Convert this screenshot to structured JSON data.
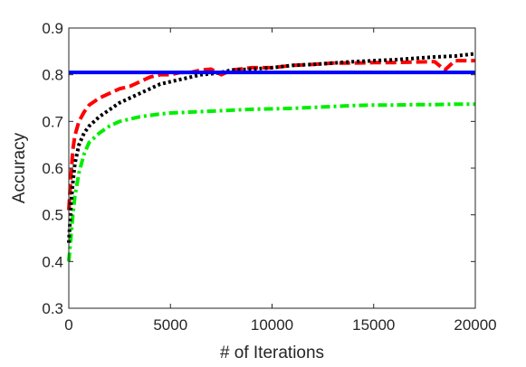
{
  "chart_data": {
    "type": "line",
    "xlabel": "# of Iterations",
    "ylabel": "Accuracy",
    "xlim": [
      0,
      20000
    ],
    "ylim": [
      0.3,
      0.9
    ],
    "xticks": [
      0,
      5000,
      10000,
      15000,
      20000
    ],
    "xtick_labels": [
      "0",
      "5000",
      "10000",
      "15000",
      "20000"
    ],
    "yticks": [
      0.3,
      0.4,
      0.5,
      0.6,
      0.7,
      0.8,
      0.9
    ],
    "ytick_labels": [
      "0.3",
      "0.4",
      "0.5",
      "0.6",
      "0.7",
      "0.8",
      "0.9"
    ],
    "grid": false,
    "box": true,
    "series": [
      {
        "color": "#0000ff",
        "style": "solid",
        "x": [
          0,
          20000
        ],
        "values": [
          0.805,
          0.805
        ]
      },
      {
        "color": "#ff0000",
        "style": "dashed",
        "x": [
          0,
          100,
          200,
          300,
          500,
          750,
          1000,
          1500,
          2000,
          2500,
          3000,
          3500,
          4000,
          4500,
          5000,
          5500,
          6000,
          6500,
          7000,
          7500,
          8000,
          9000,
          10000,
          11000,
          12000,
          13000,
          14000,
          15000,
          16000,
          17000,
          18000,
          18500,
          19000,
          19500,
          20000
        ],
        "values": [
          0.51,
          0.58,
          0.64,
          0.67,
          0.7,
          0.72,
          0.735,
          0.75,
          0.76,
          0.77,
          0.775,
          0.785,
          0.795,
          0.8,
          0.8,
          0.805,
          0.805,
          0.81,
          0.812,
          0.8,
          0.81,
          0.815,
          0.815,
          0.82,
          0.822,
          0.825,
          0.825,
          0.826,
          0.826,
          0.827,
          0.828,
          0.81,
          0.83,
          0.83,
          0.83
        ]
      },
      {
        "color": "#000000",
        "style": "dotted",
        "x": [
          0,
          100,
          200,
          300,
          500,
          750,
          1000,
          1500,
          2000,
          2500,
          3000,
          3500,
          4000,
          4500,
          5000,
          5500,
          6000,
          6500,
          7000,
          7500,
          8000,
          9000,
          10000,
          11000,
          12000,
          13000,
          14000,
          15000,
          16000,
          17000,
          18000,
          19000,
          20000
        ],
        "values": [
          0.44,
          0.52,
          0.57,
          0.61,
          0.65,
          0.675,
          0.69,
          0.71,
          0.725,
          0.74,
          0.75,
          0.76,
          0.77,
          0.78,
          0.785,
          0.79,
          0.795,
          0.8,
          0.802,
          0.805,
          0.81,
          0.812,
          0.815,
          0.82,
          0.822,
          0.825,
          0.828,
          0.83,
          0.832,
          0.835,
          0.838,
          0.84,
          0.845
        ]
      },
      {
        "color": "#00ee00",
        "style": "dashdot",
        "x": [
          0,
          100,
          200,
          300,
          500,
          750,
          1000,
          1500,
          2000,
          2500,
          3000,
          3500,
          4000,
          4500,
          5000,
          6000,
          7000,
          8000,
          9000,
          10000,
          11000,
          12000,
          13000,
          14000,
          15000,
          16000,
          17000,
          18000,
          19000,
          20000
        ],
        "values": [
          0.4,
          0.45,
          0.5,
          0.54,
          0.59,
          0.63,
          0.655,
          0.675,
          0.69,
          0.7,
          0.705,
          0.71,
          0.713,
          0.716,
          0.718,
          0.72,
          0.722,
          0.724,
          0.726,
          0.727,
          0.728,
          0.73,
          0.732,
          0.734,
          0.735,
          0.735,
          0.736,
          0.736,
          0.737,
          0.737
        ]
      }
    ]
  }
}
